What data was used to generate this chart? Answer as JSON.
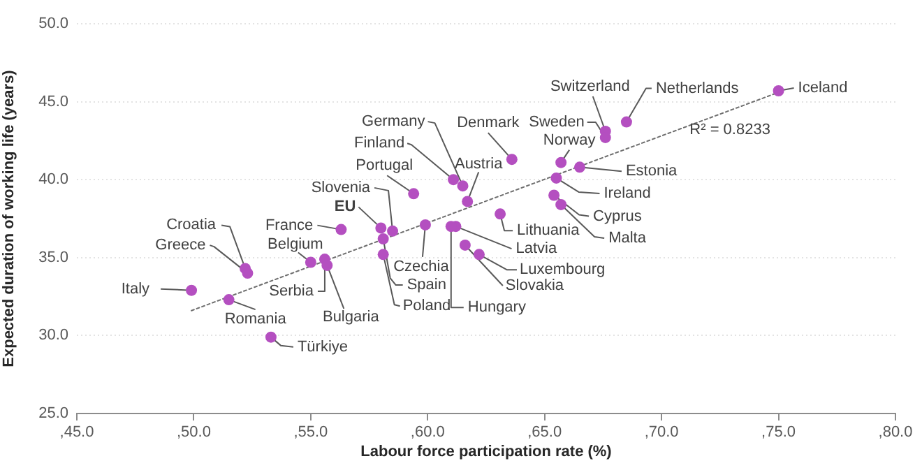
{
  "chart_data": {
    "type": "scatter",
    "xlabel": "Labour force participation rate (%)",
    "ylabel": "Expected duration of working life (years)",
    "xlim": [
      45,
      80
    ],
    "xticks": [
      {
        "value": 45,
        "label": ",45.0"
      },
      {
        "value": 50,
        "label": ",50.0"
      },
      {
        "value": 55,
        "label": ",55.0"
      },
      {
        "value": 60,
        "label": ",60.0"
      },
      {
        "value": 65,
        "label": ",65.0"
      },
      {
        "value": 70,
        "label": ",70.0"
      },
      {
        "value": 75,
        "label": ",75.0"
      },
      {
        "value": 80,
        "label": ",80.0"
      }
    ],
    "ylim": [
      25,
      50
    ],
    "yticks": [
      {
        "value": 25,
        "label": "25.0"
      },
      {
        "value": 30,
        "label": "30.0"
      },
      {
        "value": 35,
        "label": "35.0"
      },
      {
        "value": 40,
        "label": "40.0"
      },
      {
        "value": 45,
        "label": "45.0"
      },
      {
        "value": 50,
        "label": "50.0"
      }
    ],
    "grid": "y",
    "legend": false,
    "marker": "circle",
    "series": [
      {
        "type": "scatter",
        "color": "#b44fc0",
        "x": [
          75.0,
          68.5,
          67.6,
          67.6,
          65.7,
          66.5,
          65.5,
          65.4,
          65.7,
          63.6,
          61.7,
          61.5,
          61.1,
          59.4,
          63.1,
          61.2,
          61.0,
          61.6,
          62.2,
          59.9,
          58.5,
          58.0,
          58.1,
          58.1,
          56.3,
          55.0,
          55.6,
          55.7,
          52.2,
          52.3,
          49.9,
          51.5,
          53.3
        ],
        "values": [
          45.7,
          43.7,
          43.1,
          42.7,
          41.1,
          40.8,
          40.1,
          39.0,
          38.4,
          41.3,
          38.6,
          39.6,
          40.0,
          39.1,
          37.8,
          37.0,
          37.0,
          35.8,
          35.2,
          37.1,
          36.7,
          36.9,
          36.2,
          35.2,
          36.8,
          34.7,
          34.9,
          34.5,
          34.3,
          34.0,
          32.9,
          32.3,
          29.9
        ]
      },
      {
        "type": "line",
        "color": "#6e6e6e",
        "line_style": "dotted",
        "marker": "none",
        "x": [
          49.9,
          75.0
        ],
        "values": [
          31.6,
          45.6
        ]
      }
    ],
    "annotations": [
      {
        "text": "Iceland",
        "x": 75.0,
        "y": 45.7
      },
      {
        "text": "Netherlands",
        "x": 68.5,
        "y": 43.7
      },
      {
        "text": "Switzerland",
        "x": 67.6,
        "y": 43.1
      },
      {
        "text": "Sweden",
        "x": 67.6,
        "y": 42.7
      },
      {
        "text": "Norway",
        "x": 65.7,
        "y": 41.1
      },
      {
        "text": "Estonia",
        "x": 66.5,
        "y": 40.8
      },
      {
        "text": "Ireland",
        "x": 65.5,
        "y": 40.1
      },
      {
        "text": "Cyprus",
        "x": 65.4,
        "y": 39.0
      },
      {
        "text": "Malta",
        "x": 65.7,
        "y": 38.4
      },
      {
        "text": "Denmark",
        "x": 63.6,
        "y": 41.3
      },
      {
        "text": "Austria",
        "x": 61.7,
        "y": 38.6
      },
      {
        "text": "Germany",
        "x": 61.5,
        "y": 39.6
      },
      {
        "text": "Finland",
        "x": 61.1,
        "y": 40.0
      },
      {
        "text": "Portugal",
        "x": 59.4,
        "y": 39.1
      },
      {
        "text": "Lithuania",
        "x": 63.1,
        "y": 37.8
      },
      {
        "text": "Latvia",
        "x": 61.2,
        "y": 37.0
      },
      {
        "text": "Hungary",
        "x": 61.0,
        "y": 37.0
      },
      {
        "text": "Slovakia",
        "x": 61.6,
        "y": 35.8
      },
      {
        "text": "Luxembourg",
        "x": 62.2,
        "y": 35.2
      },
      {
        "text": "Czechia",
        "x": 59.9,
        "y": 37.1
      },
      {
        "text": "Slovenia",
        "x": 58.5,
        "y": 36.7
      },
      {
        "text": "EU",
        "x": 58.0,
        "y": 36.9
      },
      {
        "text": "Spain",
        "x": 58.1,
        "y": 36.2
      },
      {
        "text": "Poland",
        "x": 58.1,
        "y": 35.2
      },
      {
        "text": "France",
        "x": 56.3,
        "y": 36.8
      },
      {
        "text": "Belgium",
        "x": 55.0,
        "y": 34.7
      },
      {
        "text": "Serbia",
        "x": 55.6,
        "y": 34.9
      },
      {
        "text": "Bulgaria",
        "x": 55.7,
        "y": 34.5
      },
      {
        "text": "Croatia",
        "x": 52.2,
        "y": 34.3
      },
      {
        "text": "Greece",
        "x": 52.3,
        "y": 34.0
      },
      {
        "text": "Italy",
        "x": 49.9,
        "y": 32.9
      },
      {
        "text": "Romania",
        "x": 51.5,
        "y": 32.3
      },
      {
        "text": "Türkiye",
        "x": 53.3,
        "y": 29.9
      },
      {
        "text": "R² = 0.8233",
        "x": 71.2,
        "y": 43.2
      }
    ]
  }
}
